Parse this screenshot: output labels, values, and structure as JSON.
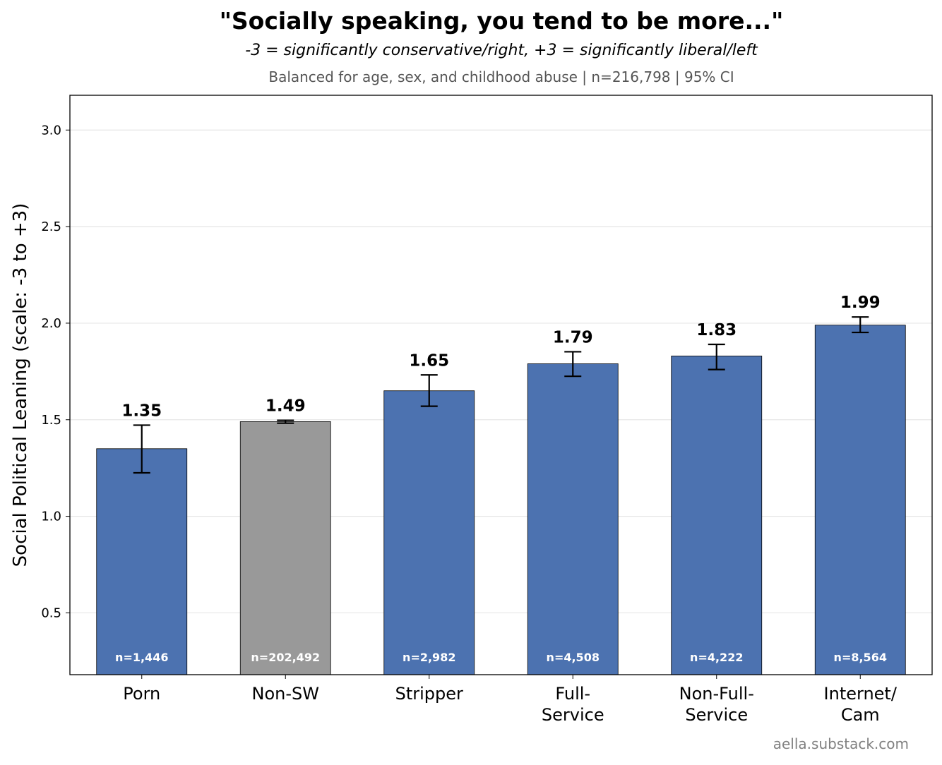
{
  "chart_data": {
    "type": "bar",
    "title": "\"Socially speaking, you tend to be more...\"",
    "subtitle": "-3 = significantly conservative/right, +3 = significantly liberal/left",
    "note": "Balanced for age, sex, and childhood abuse  |  n=216,798  |  95% CI",
    "ylabel": "Social Political Leaning  (scale: -3 to +3)",
    "xlabel": "",
    "ylim": [
      0.18,
      3.18
    ],
    "yticks": [
      0.5,
      1.0,
      1.5,
      2.0,
      2.5,
      3.0
    ],
    "ytick_labels": [
      "0.5",
      "1.0",
      "1.5",
      "2.0",
      "2.5",
      "3.0"
    ],
    "grid": "horizontal",
    "categories": [
      {
        "lines": [
          "Porn"
        ]
      },
      {
        "lines": [
          "Non-SW"
        ]
      },
      {
        "lines": [
          "Stripper"
        ]
      },
      {
        "lines": [
          "Full-",
          "Service"
        ]
      },
      {
        "lines": [
          "Non-Full-",
          "Service"
        ]
      },
      {
        "lines": [
          "Internet/",
          "Cam"
        ]
      }
    ],
    "values": [
      1.35,
      1.49,
      1.65,
      1.79,
      1.83,
      1.99
    ],
    "value_labels": [
      "1.35",
      "1.49",
      "1.65",
      "1.79",
      "1.83",
      "1.99"
    ],
    "ci_low": [
      1.225,
      1.482,
      1.57,
      1.725,
      1.76,
      1.952
    ],
    "ci_high": [
      1.472,
      1.497,
      1.732,
      1.852,
      1.89,
      2.032
    ],
    "n_labels": [
      "n=1,446",
      "n=202,492",
      "n=2,982",
      "n=4,508",
      "n=4,222",
      "n=8,564"
    ],
    "colors": [
      "#4c72b0",
      "#999999",
      "#4c72b0",
      "#4c72b0",
      "#4c72b0",
      "#4c72b0"
    ]
  },
  "credit": "aella.substack.com"
}
